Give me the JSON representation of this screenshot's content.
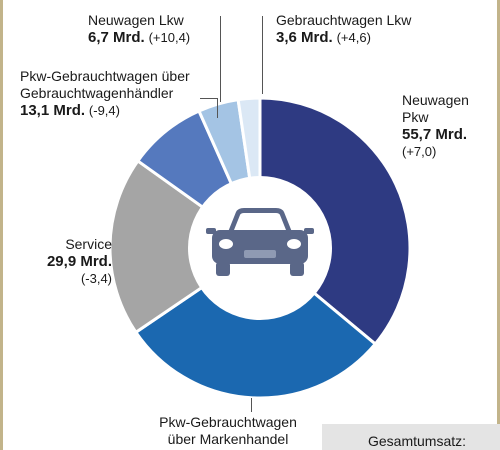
{
  "chart_data": {
    "type": "pie",
    "unit": "Mrd.",
    "slices": [
      {
        "name": "Neuwagen Pkw",
        "name_lines": [
          "Neuwagen",
          "Pkw"
        ],
        "amount": "55,7 Mrd.",
        "change": "(+7,0)",
        "value": 55.7,
        "color": "#2e3a82"
      },
      {
        "name": "Pkw-Gebrauchtwagen über Markenhandel",
        "name_lines": [
          "Pkw-Gebrauchtwagen",
          "über Markenhandel"
        ],
        "value": 45.5,
        "color": "#1b68b0"
      },
      {
        "name": "Service",
        "name_lines": [
          "Service"
        ],
        "amount": "29,9 Mrd.",
        "change": "(-3,4)",
        "value": 29.9,
        "color": "#a5a5a5"
      },
      {
        "name": "Pkw-Gebrauchtwagen über Gebrauchtwagenhändler",
        "name_lines": [
          "Pkw-Gebrauchtwagen über",
          "Gebrauchtwagenhändler"
        ],
        "amount": "13,1 Mrd.",
        "change": "(-9,4)",
        "value": 13.1,
        "color": "#5579be"
      },
      {
        "name": "Neuwagen Lkw",
        "name_lines": [
          "Neuwagen Lkw"
        ],
        "amount": "6,7 Mrd.",
        "change": "(+10,4)",
        "value": 6.7,
        "color": "#a4c4e4"
      },
      {
        "name": "Gebrauchtwagen Lkw",
        "name_lines": [
          "Gebrauchtwagen Lkw"
        ],
        "amount": "3,6 Mrd.",
        "change": "(+4,6)",
        "value": 3.6,
        "color": "#dbe8f5"
      }
    ]
  },
  "total": {
    "label": "Gesamtumsatz:"
  },
  "icons": {
    "center": "car-icon"
  }
}
